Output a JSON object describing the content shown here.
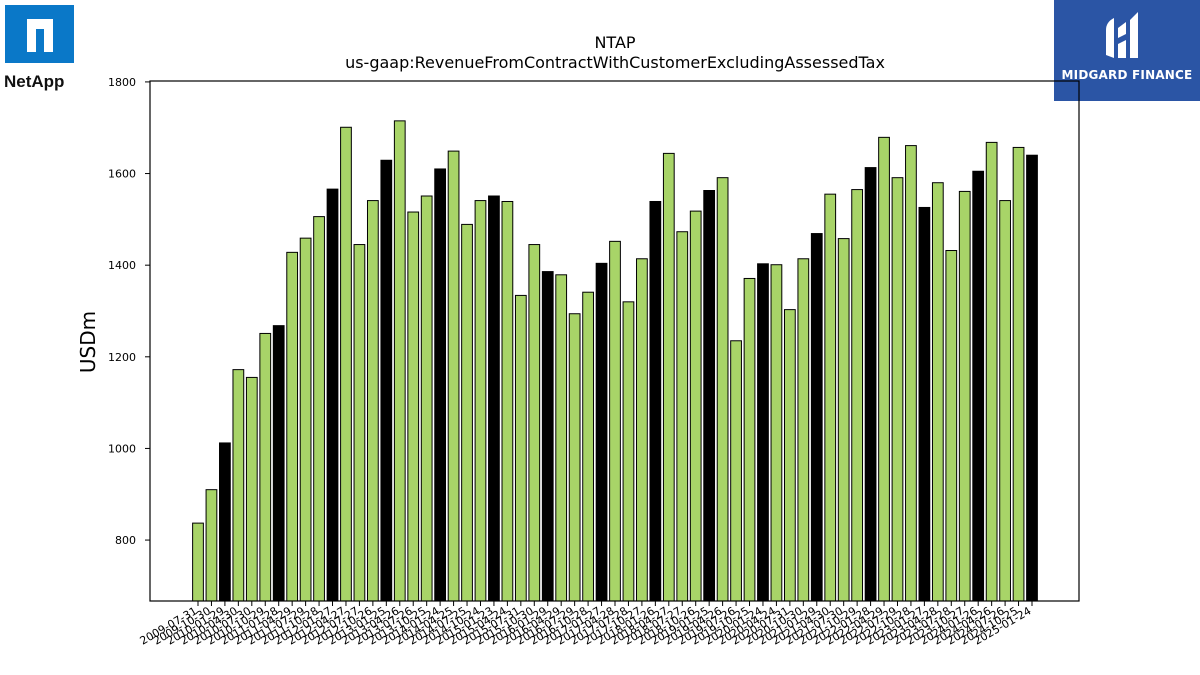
{
  "logos": {
    "company": "NetApp",
    "publisher": "MIDGARD FINANCE"
  },
  "colors": {
    "bar_default": "#a8d468",
    "bar_highlight": "#000000",
    "publisher_bg": "#2b55a5",
    "netapp_blue": "#0a78c8"
  },
  "chart_data": {
    "type": "bar",
    "title": "NTAP",
    "subtitle": "us-gaap:RevenueFromContractWithCustomerExcludingAssessedTax",
    "xlabel": "",
    "ylabel": "USDm",
    "ylim": [
      667,
      1802
    ],
    "yticks": [
      800,
      1000,
      1200,
      1400,
      1600,
      1800
    ],
    "grid": false,
    "categories": [
      "2009-07-31",
      "2009-10-30",
      "2010-01-29",
      "2010-04-30",
      "2010-07-30",
      "2010-10-29",
      "2011-01-28",
      "2011-04-29",
      "2011-07-29",
      "2011-10-28",
      "2012-01-27",
      "2012-04-27",
      "2012-07-27",
      "2012-10-26",
      "2013-01-25",
      "2013-04-26",
      "2013-07-26",
      "2013-10-25",
      "2014-01-24",
      "2014-04-25",
      "2014-07-25",
      "2014-10-24",
      "2015-01-23",
      "2015-04-24",
      "2015-07-31",
      "2015-10-30",
      "2016-01-29",
      "2016-04-29",
      "2016-07-29",
      "2016-10-28",
      "2017-01-27",
      "2017-04-28",
      "2017-07-28",
      "2017-10-27",
      "2018-01-26",
      "2018-04-27",
      "2018-07-27",
      "2018-10-26",
      "2019-01-25",
      "2019-04-26",
      "2019-07-26",
      "2019-10-25",
      "2020-01-24",
      "2020-04-24",
      "2020-07-31",
      "2020-10-30",
      "2021-01-29",
      "2021-04-30",
      "2021-07-30",
      "2021-10-29",
      "2022-01-28",
      "2022-04-29",
      "2022-07-29",
      "2022-10-28",
      "2023-01-27",
      "2023-04-28",
      "2023-07-28",
      "2023-10-27",
      "2024-01-26",
      "2024-04-26",
      "2024-07-26",
      "2024-10-25",
      "2025-01-24"
    ],
    "values": [
      837,
      910,
      1012,
      1172,
      1155,
      1251,
      1268,
      1428,
      1459,
      1506,
      1566,
      1701,
      1445,
      1541,
      1629,
      1715,
      1516,
      1551,
      1610,
      1649,
      1489,
      1541,
      1551,
      1539,
      1334,
      1445,
      1386,
      1379,
      1294,
      1341,
      1404,
      1452,
      1320,
      1414,
      1539,
      1644,
      1473,
      1518,
      1563,
      1591,
      1235,
      1371,
      1403,
      1401,
      1303,
      1414,
      1469,
      1555,
      1458,
      1565,
      1613,
      1679,
      1591,
      1661,
      1526,
      1580,
      1432,
      1561,
      1605,
      1668,
      1541,
      1657,
      1640
    ],
    "highlight_indices": [
      2,
      6,
      10,
      14,
      18,
      22,
      26,
      30,
      34,
      38,
      42,
      46,
      50,
      54,
      58,
      62
    ]
  }
}
